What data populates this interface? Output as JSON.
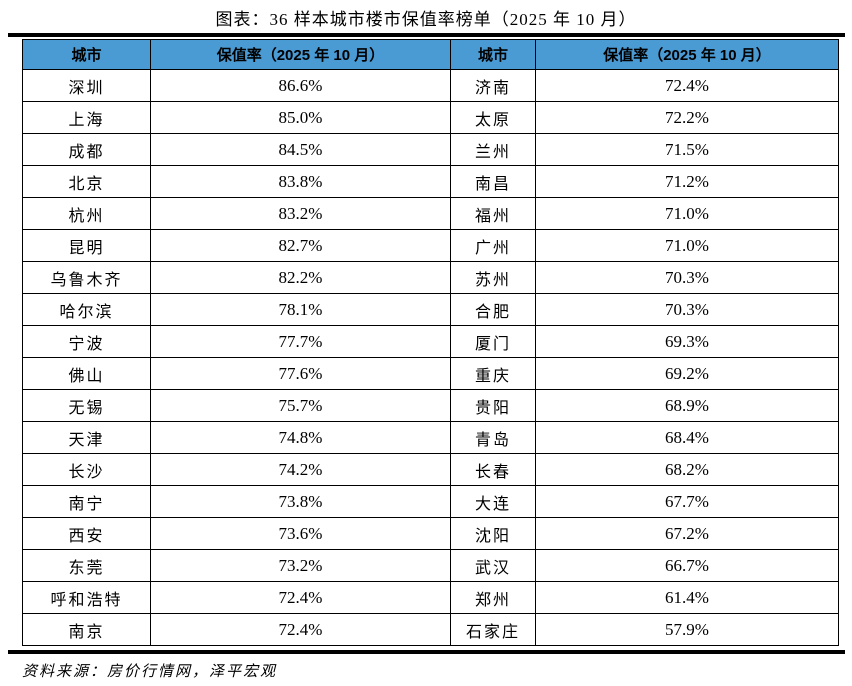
{
  "title": "图表：36 样本城市楼市保值率榜单（2025 年 10 月）",
  "source_note": "资料来源：房价行情网，泽平宏观",
  "colors": {
    "header_bg": "#4A9AD4",
    "border": "#000000",
    "text": "#000000"
  },
  "table": {
    "headers": [
      "城市",
      "保值率（2025 年 10 月）",
      "城市",
      "保值率（2025 年 10 月）"
    ],
    "rows": [
      [
        "深圳",
        "86.6%",
        "济南",
        "72.4%"
      ],
      [
        "上海",
        "85.0%",
        "太原",
        "72.2%"
      ],
      [
        "成都",
        "84.5%",
        "兰州",
        "71.5%"
      ],
      [
        "北京",
        "83.8%",
        "南昌",
        "71.2%"
      ],
      [
        "杭州",
        "83.2%",
        "福州",
        "71.0%"
      ],
      [
        "昆明",
        "82.7%",
        "广州",
        "71.0%"
      ],
      [
        "乌鲁木齐",
        "82.2%",
        "苏州",
        "70.3%"
      ],
      [
        "哈尔滨",
        "78.1%",
        "合肥",
        "70.3%"
      ],
      [
        "宁波",
        "77.7%",
        "厦门",
        "69.3%"
      ],
      [
        "佛山",
        "77.6%",
        "重庆",
        "69.2%"
      ],
      [
        "无锡",
        "75.7%",
        "贵阳",
        "68.9%"
      ],
      [
        "天津",
        "74.8%",
        "青岛",
        "68.4%"
      ],
      [
        "长沙",
        "74.2%",
        "长春",
        "68.2%"
      ],
      [
        "南宁",
        "73.8%",
        "大连",
        "67.7%"
      ],
      [
        "西安",
        "73.6%",
        "沈阳",
        "67.2%"
      ],
      [
        "东莞",
        "73.2%",
        "武汉",
        "66.7%"
      ],
      [
        "呼和浩特",
        "72.4%",
        "郑州",
        "61.4%"
      ],
      [
        "南京",
        "72.4%",
        "石家庄",
        "57.9%"
      ]
    ]
  },
  "chart_data": {
    "type": "table",
    "title": "图表：36 样本城市楼市保值率榜单（2025 年 10 月）",
    "columns": [
      "城市",
      "保值率（2025 年 10 月）"
    ],
    "cities": [
      "深圳",
      "上海",
      "成都",
      "北京",
      "杭州",
      "昆明",
      "乌鲁木齐",
      "哈尔滨",
      "宁波",
      "佛山",
      "无锡",
      "天津",
      "长沙",
      "南宁",
      "西安",
      "东莞",
      "呼和浩特",
      "南京",
      "济南",
      "太原",
      "兰州",
      "南昌",
      "福州",
      "广州",
      "苏州",
      "合肥",
      "厦门",
      "重庆",
      "贵阳",
      "青岛",
      "长春",
      "大连",
      "沈阳",
      "武汉",
      "郑州",
      "石家庄"
    ],
    "values_pct": [
      86.6,
      85.0,
      84.5,
      83.8,
      83.2,
      82.7,
      82.2,
      78.1,
      77.7,
      77.6,
      75.7,
      74.8,
      74.2,
      73.8,
      73.6,
      73.2,
      72.4,
      72.4,
      72.4,
      72.2,
      71.5,
      71.2,
      71.0,
      71.0,
      70.3,
      70.3,
      69.3,
      69.2,
      68.9,
      68.4,
      68.2,
      67.7,
      67.2,
      66.7,
      61.4,
      57.9
    ],
    "source": "资料来源：房价行情网，泽平宏观",
    "layout": "two-column ranked table, 18 rows per half, thick rules above header and below last row"
  }
}
